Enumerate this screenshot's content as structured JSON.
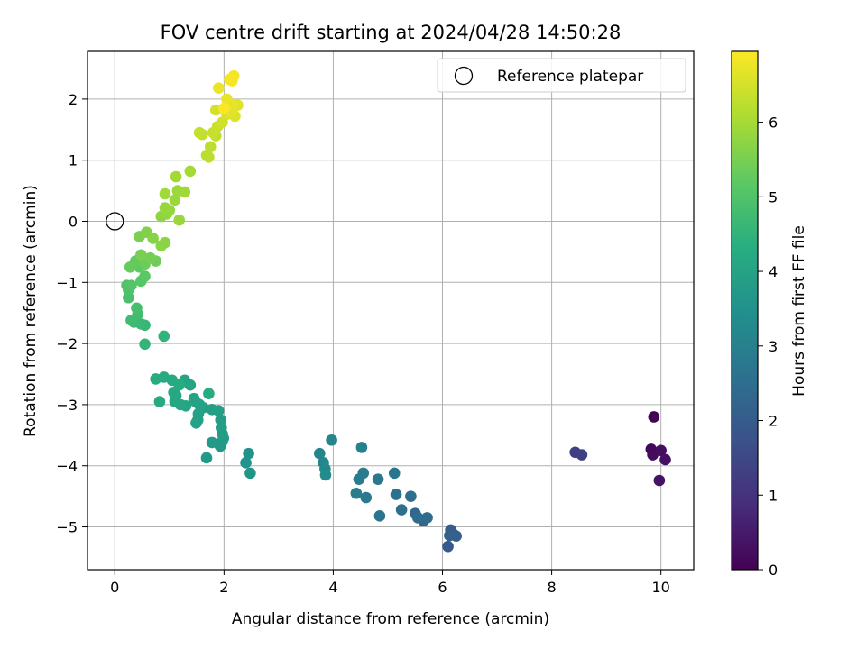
{
  "chart_data": {
    "type": "scatter",
    "title": "FOV centre drift starting at 2024/04/28 14:50:28",
    "xlabel": "Angular distance from reference (arcmin)",
    "ylabel": "Rotation from reference (arcmin)",
    "xlim": [
      -0.5,
      10.6
    ],
    "ylim": [
      -5.7,
      2.78
    ],
    "xticks": [
      0,
      2,
      4,
      6,
      8,
      10
    ],
    "yticks": [
      -5,
      -4,
      -3,
      -2,
      -1,
      0,
      1,
      2
    ],
    "xtick_labels": [
      "0",
      "2",
      "4",
      "6",
      "8",
      "10"
    ],
    "ytick_labels": [
      "−5",
      "−4",
      "−3",
      "−2",
      "−1",
      "0",
      "1",
      "2"
    ],
    "grid": true,
    "legend": {
      "placement": "top-right",
      "label": "Reference platepar"
    },
    "reference_point": {
      "x": 0,
      "y": 0
    },
    "colorbar": {
      "label": "Hours from first FF file",
      "range": [
        0,
        6.95
      ],
      "ticks": [
        0,
        1,
        2,
        3,
        4,
        5,
        6
      ],
      "tick_labels": [
        "0",
        "1",
        "2",
        "3",
        "4",
        "5",
        "6"
      ],
      "colormap": "viridis"
    },
    "points": [
      [
        9.87,
        -3.2,
        0.05
      ],
      [
        9.82,
        -3.73,
        0.15
      ],
      [
        9.85,
        -3.82,
        0.2
      ],
      [
        10.0,
        -3.75,
        0.25
      ],
      [
        10.08,
        -3.9,
        0.3
      ],
      [
        9.97,
        -4.24,
        0.35
      ],
      [
        8.43,
        -3.78,
        1.3
      ],
      [
        8.55,
        -3.82,
        1.35
      ],
      [
        6.1,
        -5.32,
        1.95
      ],
      [
        6.15,
        -5.05,
        2.0
      ],
      [
        6.2,
        -5.12,
        2.05
      ],
      [
        6.25,
        -5.15,
        2.1
      ],
      [
        6.13,
        -5.14,
        2.15
      ],
      [
        5.5,
        -4.78,
        2.3
      ],
      [
        5.65,
        -4.9,
        2.35
      ],
      [
        5.72,
        -4.85,
        2.4
      ],
      [
        5.55,
        -4.85,
        2.45
      ],
      [
        5.42,
        -4.5,
        2.5
      ],
      [
        5.25,
        -4.72,
        2.55
      ],
      [
        5.15,
        -4.47,
        2.6
      ],
      [
        5.12,
        -4.12,
        2.65
      ],
      [
        4.85,
        -4.82,
        2.7
      ],
      [
        4.82,
        -4.22,
        2.75
      ],
      [
        4.6,
        -4.52,
        2.8
      ],
      [
        4.55,
        -4.12,
        2.85
      ],
      [
        4.47,
        -4.22,
        2.9
      ],
      [
        4.42,
        -4.45,
        2.95
      ],
      [
        4.52,
        -3.7,
        3.0
      ],
      [
        3.97,
        -3.58,
        3.1
      ],
      [
        3.75,
        -3.8,
        3.15
      ],
      [
        3.82,
        -3.95,
        3.2
      ],
      [
        3.85,
        -4.05,
        3.25
      ],
      [
        3.86,
        -4.15,
        3.3
      ],
      [
        2.45,
        -3.8,
        3.5
      ],
      [
        2.4,
        -3.95,
        3.55
      ],
      [
        2.48,
        -4.12,
        3.6
      ],
      [
        1.68,
        -3.87,
        3.7
      ],
      [
        1.97,
        -3.6,
        3.72
      ],
      [
        1.93,
        -3.68,
        3.74
      ],
      [
        1.78,
        -3.62,
        3.76
      ],
      [
        1.99,
        -3.55,
        3.78
      ],
      [
        1.97,
        -3.48,
        3.8
      ],
      [
        1.95,
        -3.38,
        3.82
      ],
      [
        1.94,
        -3.25,
        3.84
      ],
      [
        1.9,
        -3.1,
        3.86
      ],
      [
        1.78,
        -3.08,
        3.88
      ],
      [
        1.62,
        -3.05,
        3.9
      ],
      [
        1.52,
        -3.25,
        3.92
      ],
      [
        1.49,
        -3.3,
        3.94
      ],
      [
        1.53,
        -3.15,
        3.96
      ],
      [
        1.55,
        -3.0,
        3.98
      ],
      [
        1.45,
        -2.9,
        4.0
      ],
      [
        1.48,
        -2.95,
        4.02
      ],
      [
        1.38,
        -2.68,
        4.04
      ],
      [
        1.28,
        -2.6,
        4.06
      ],
      [
        1.3,
        -3.02,
        4.08
      ],
      [
        1.2,
        -3.0,
        4.1
      ],
      [
        1.12,
        -2.85,
        4.12
      ],
      [
        1.1,
        -2.95,
        4.14
      ],
      [
        1.08,
        -2.8,
        4.16
      ],
      [
        1.05,
        -2.6,
        4.18
      ],
      [
        0.9,
        -2.55,
        4.2
      ],
      [
        0.82,
        -2.95,
        4.22
      ],
      [
        0.75,
        -2.58,
        4.24
      ],
      [
        1.18,
        -2.68,
        4.26
      ],
      [
        1.72,
        -2.82,
        4.28
      ],
      [
        0.9,
        -1.88,
        4.5
      ],
      [
        0.55,
        -2.01,
        4.55
      ],
      [
        0.55,
        -1.7,
        4.6
      ],
      [
        0.48,
        -1.68,
        4.65
      ],
      [
        0.35,
        -1.65,
        4.7
      ],
      [
        0.3,
        -1.62,
        4.75
      ],
      [
        0.42,
        -1.52,
        4.8
      ],
      [
        0.4,
        -1.42,
        4.85
      ],
      [
        0.25,
        -1.25,
        4.9
      ],
      [
        0.25,
        -1.12,
        4.95
      ],
      [
        0.22,
        -1.05,
        5.0
      ],
      [
        0.3,
        -1.05,
        5.05
      ],
      [
        0.48,
        -0.98,
        5.1
      ],
      [
        0.55,
        -0.9,
        5.15
      ],
      [
        0.45,
        -0.75,
        5.2
      ],
      [
        0.38,
        -0.65,
        5.25
      ],
      [
        0.28,
        -0.75,
        5.3
      ],
      [
        0.55,
        -0.7,
        5.35
      ],
      [
        0.75,
        -0.65,
        5.4
      ],
      [
        0.65,
        -0.6,
        5.45
      ],
      [
        0.48,
        -0.55,
        5.5
      ],
      [
        0.45,
        -0.25,
        5.55
      ],
      [
        0.58,
        -0.18,
        5.6
      ],
      [
        0.7,
        -0.28,
        5.65
      ],
      [
        0.85,
        -0.4,
        5.7
      ],
      [
        0.92,
        -0.35,
        5.72
      ],
      [
        0.85,
        0.08,
        5.75
      ],
      [
        0.95,
        0.12,
        5.78
      ],
      [
        1.0,
        0.18,
        5.8
      ],
      [
        0.92,
        0.22,
        5.83
      ],
      [
        1.18,
        0.02,
        5.86
      ],
      [
        1.1,
        0.35,
        5.88
      ],
      [
        1.15,
        0.5,
        5.9
      ],
      [
        1.28,
        0.48,
        5.92
      ],
      [
        0.92,
        0.45,
        5.94
      ],
      [
        1.12,
        0.73,
        5.96
      ],
      [
        1.38,
        0.82,
        5.98
      ],
      [
        1.72,
        1.05,
        6.2
      ],
      [
        1.68,
        1.08,
        6.22
      ],
      [
        1.75,
        1.22,
        6.25
      ],
      [
        1.85,
        1.4,
        6.28
      ],
      [
        1.6,
        1.42,
        6.3
      ],
      [
        1.55,
        1.45,
        6.33
      ],
      [
        1.8,
        1.45,
        6.36
      ],
      [
        1.88,
        1.55,
        6.4
      ],
      [
        1.97,
        1.62,
        6.45
      ],
      [
        1.85,
        1.82,
        6.5
      ],
      [
        2.05,
        1.75,
        6.55
      ],
      [
        2.2,
        1.72,
        6.58
      ],
      [
        2.12,
        1.78,
        6.62
      ],
      [
        2.25,
        1.9,
        6.65
      ],
      [
        2.15,
        1.9,
        6.68
      ],
      [
        2.05,
        2.0,
        6.72
      ],
      [
        1.9,
        2.18,
        6.75
      ],
      [
        2.1,
        2.32,
        6.8
      ],
      [
        2.18,
        2.38,
        6.85
      ],
      [
        2.15,
        2.3,
        6.9
      ],
      [
        2.0,
        1.85,
        6.93
      ]
    ]
  }
}
